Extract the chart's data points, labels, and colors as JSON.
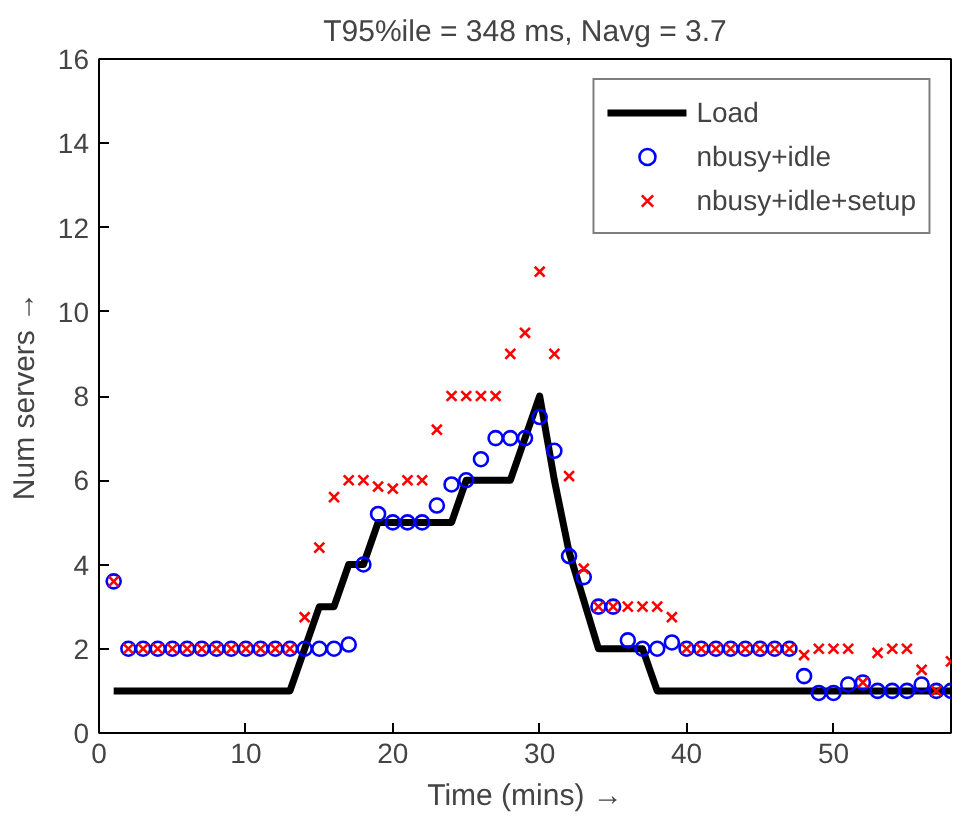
{
  "chart_data": {
    "type": "scatter",
    "title": "T95%ile = 348 ms, Navg = 3.7",
    "xlabel": "Time (mins) →",
    "ylabel": "Num servers →",
    "xlim": [
      0,
      58
    ],
    "ylim": [
      0,
      16
    ],
    "xticks": [
      0,
      10,
      20,
      30,
      40,
      50
    ],
    "yticks": [
      0,
      2,
      4,
      6,
      8,
      10,
      12,
      14,
      16
    ],
    "grid": false,
    "legend": "top right",
    "series": [
      {
        "name": "Load",
        "type": "line",
        "color": "#000000",
        "line_style": "solid",
        "x": [
          1,
          13,
          15,
          16,
          17,
          18,
          19,
          24,
          25,
          28,
          29,
          30,
          31,
          32,
          34,
          37,
          38,
          58
        ],
        "values": [
          1,
          1,
          3,
          3,
          4,
          4,
          5,
          5,
          6,
          6,
          7,
          8,
          6,
          4.3,
          2,
          2,
          1,
          1
        ]
      },
      {
        "name": "nbusy+idle",
        "marker": "circle",
        "color": "#0000ff",
        "x": [
          1,
          2,
          3,
          4,
          5,
          6,
          7,
          8,
          9,
          10,
          11,
          12,
          13,
          14,
          15,
          16,
          17,
          18,
          19,
          20,
          21,
          22,
          23,
          24,
          25,
          26,
          27,
          28,
          29,
          30,
          31,
          32,
          33,
          34,
          35,
          36,
          37,
          38,
          39,
          40,
          41,
          42,
          43,
          44,
          45,
          46,
          47,
          48,
          49,
          50,
          51,
          52,
          53,
          54,
          55,
          56,
          57,
          58
        ],
        "values": [
          3.6,
          2,
          2,
          2,
          2,
          2,
          2,
          2,
          2,
          2,
          2,
          2,
          2,
          2,
          2,
          2,
          2.1,
          4,
          5.2,
          5,
          5,
          5,
          5.4,
          5.9,
          6,
          6.5,
          7,
          7,
          7,
          7.5,
          6.7,
          4.2,
          3.7,
          3,
          3,
          2.2,
          2,
          2,
          2.15,
          2,
          2,
          2,
          2,
          2,
          2,
          2,
          2,
          1.35,
          0.95,
          0.95,
          1.15,
          1.2,
          1,
          1,
          1,
          1.15,
          1,
          1
        ]
      },
      {
        "name": "nbusy+idle+setup",
        "marker": "cross",
        "color": "#ff0000",
        "x": [
          1,
          2,
          3,
          4,
          5,
          6,
          7,
          8,
          9,
          10,
          11,
          12,
          13,
          14,
          15,
          16,
          17,
          18,
          19,
          20,
          21,
          22,
          23,
          24,
          25,
          26,
          27,
          28,
          29,
          30,
          31,
          32,
          33,
          34,
          35,
          36,
          37,
          38,
          39,
          40,
          41,
          42,
          43,
          44,
          45,
          46,
          47,
          48,
          49,
          50,
          51,
          52,
          53,
          54,
          55,
          56,
          57,
          58
        ],
        "values": [
          3.6,
          2,
          2,
          2,
          2,
          2,
          2,
          2,
          2,
          2,
          2,
          2,
          2,
          2.75,
          4.4,
          5.6,
          6,
          6,
          5.85,
          5.8,
          6,
          6,
          7.2,
          8,
          8,
          8,
          8,
          9,
          9.5,
          10.95,
          9,
          6.1,
          3.9,
          3,
          3,
          3,
          3,
          3,
          2.75,
          2,
          2,
          2,
          2,
          2,
          2,
          2,
          2,
          1.85,
          2,
          2,
          2,
          1.2,
          1.9,
          2,
          2,
          1.5,
          1,
          1.7
        ]
      }
    ]
  }
}
